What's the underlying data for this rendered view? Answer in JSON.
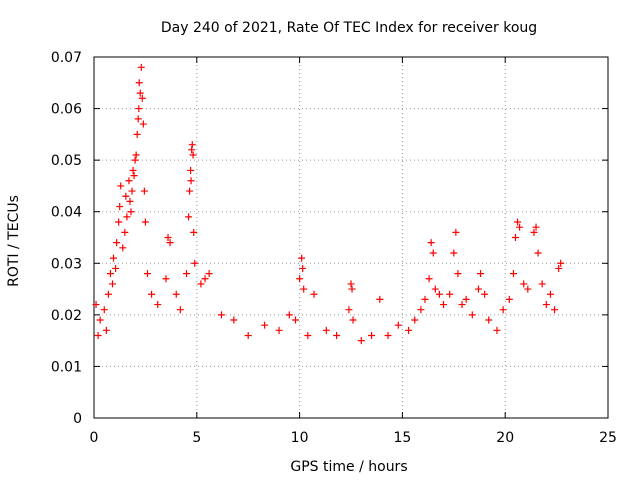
{
  "chart_data": {
    "type": "scatter",
    "title": "Day 240 of 2021, Rate Of TEC Index for receiver koug",
    "xlabel": "GPS time / hours",
    "ylabel": "ROTI / TECUs",
    "xlim": [
      0,
      25
    ],
    "ylim": [
      0,
      0.07
    ],
    "xticks": [
      "0",
      "5",
      "10",
      "15",
      "20",
      "25"
    ],
    "yticks": [
      "0",
      "0.01",
      "0.02",
      "0.03",
      "0.04",
      "0.05",
      "0.06",
      "0.07"
    ],
    "grid": true,
    "marker": "+",
    "color": "#ff0000",
    "series": [
      {
        "name": "",
        "points": [
          [
            0.1,
            0.022
          ],
          [
            0.2,
            0.016
          ],
          [
            0.3,
            0.019
          ],
          [
            0.5,
            0.021
          ],
          [
            0.6,
            0.017
          ],
          [
            0.7,
            0.024
          ],
          [
            0.8,
            0.028
          ],
          [
            0.9,
            0.026
          ],
          [
            0.95,
            0.031
          ],
          [
            1.05,
            0.029
          ],
          [
            1.1,
            0.034
          ],
          [
            1.2,
            0.038
          ],
          [
            1.25,
            0.041
          ],
          [
            1.3,
            0.045
          ],
          [
            1.4,
            0.033
          ],
          [
            1.5,
            0.036
          ],
          [
            1.55,
            0.043
          ],
          [
            1.6,
            0.039
          ],
          [
            1.7,
            0.046
          ],
          [
            1.75,
            0.042
          ],
          [
            1.8,
            0.04
          ],
          [
            1.85,
            0.044
          ],
          [
            1.9,
            0.048
          ],
          [
            1.95,
            0.047
          ],
          [
            2.0,
            0.05
          ],
          [
            2.05,
            0.051
          ],
          [
            2.1,
            0.055
          ],
          [
            2.15,
            0.058
          ],
          [
            2.18,
            0.06
          ],
          [
            2.2,
            0.065
          ],
          [
            2.25,
            0.063
          ],
          [
            2.3,
            0.068
          ],
          [
            2.35,
            0.062
          ],
          [
            2.4,
            0.057
          ],
          [
            2.45,
            0.044
          ],
          [
            2.5,
            0.038
          ],
          [
            2.6,
            0.028
          ],
          [
            2.8,
            0.024
          ],
          [
            3.1,
            0.022
          ],
          [
            3.5,
            0.027
          ],
          [
            3.6,
            0.035
          ],
          [
            3.7,
            0.034
          ],
          [
            4.0,
            0.024
          ],
          [
            4.2,
            0.021
          ],
          [
            4.5,
            0.028
          ],
          [
            4.6,
            0.039
          ],
          [
            4.65,
            0.044
          ],
          [
            4.7,
            0.048
          ],
          [
            4.72,
            0.046
          ],
          [
            4.75,
            0.052
          ],
          [
            4.78,
            0.053
          ],
          [
            4.82,
            0.051
          ],
          [
            4.85,
            0.036
          ],
          [
            4.9,
            0.03
          ],
          [
            5.2,
            0.026
          ],
          [
            5.4,
            0.027
          ],
          [
            5.6,
            0.028
          ],
          [
            6.2,
            0.02
          ],
          [
            6.8,
            0.019
          ],
          [
            7.5,
            0.016
          ],
          [
            8.3,
            0.018
          ],
          [
            9.0,
            0.017
          ],
          [
            9.5,
            0.02
          ],
          [
            9.8,
            0.019
          ],
          [
            10.0,
            0.027
          ],
          [
            10.1,
            0.031
          ],
          [
            10.15,
            0.029
          ],
          [
            10.2,
            0.025
          ],
          [
            10.4,
            0.016
          ],
          [
            10.7,
            0.024
          ],
          [
            11.3,
            0.017
          ],
          [
            11.8,
            0.016
          ],
          [
            12.4,
            0.021
          ],
          [
            12.5,
            0.026
          ],
          [
            12.55,
            0.025
          ],
          [
            12.6,
            0.019
          ],
          [
            13.0,
            0.015
          ],
          [
            13.5,
            0.016
          ],
          [
            13.9,
            0.023
          ],
          [
            14.3,
            0.016
          ],
          [
            14.8,
            0.018
          ],
          [
            15.3,
            0.017
          ],
          [
            15.6,
            0.019
          ],
          [
            15.9,
            0.021
          ],
          [
            16.1,
            0.023
          ],
          [
            16.3,
            0.027
          ],
          [
            16.4,
            0.034
          ],
          [
            16.5,
            0.032
          ],
          [
            16.6,
            0.025
          ],
          [
            16.8,
            0.024
          ],
          [
            17.0,
            0.022
          ],
          [
            17.3,
            0.024
          ],
          [
            17.5,
            0.032
          ],
          [
            17.6,
            0.036
          ],
          [
            17.7,
            0.028
          ],
          [
            17.9,
            0.022
          ],
          [
            18.1,
            0.023
          ],
          [
            18.4,
            0.02
          ],
          [
            18.7,
            0.025
          ],
          [
            18.8,
            0.028
          ],
          [
            19.0,
            0.024
          ],
          [
            19.2,
            0.019
          ],
          [
            19.6,
            0.017
          ],
          [
            19.9,
            0.021
          ],
          [
            20.2,
            0.023
          ],
          [
            20.4,
            0.028
          ],
          [
            20.5,
            0.035
          ],
          [
            20.6,
            0.038
          ],
          [
            20.7,
            0.037
          ],
          [
            20.9,
            0.026
          ],
          [
            21.1,
            0.025
          ],
          [
            21.4,
            0.036
          ],
          [
            21.5,
            0.037
          ],
          [
            21.6,
            0.032
          ],
          [
            21.8,
            0.026
          ],
          [
            22.0,
            0.022
          ],
          [
            22.2,
            0.024
          ],
          [
            22.4,
            0.021
          ],
          [
            22.6,
            0.029
          ],
          [
            22.7,
            0.03
          ]
        ]
      }
    ]
  }
}
